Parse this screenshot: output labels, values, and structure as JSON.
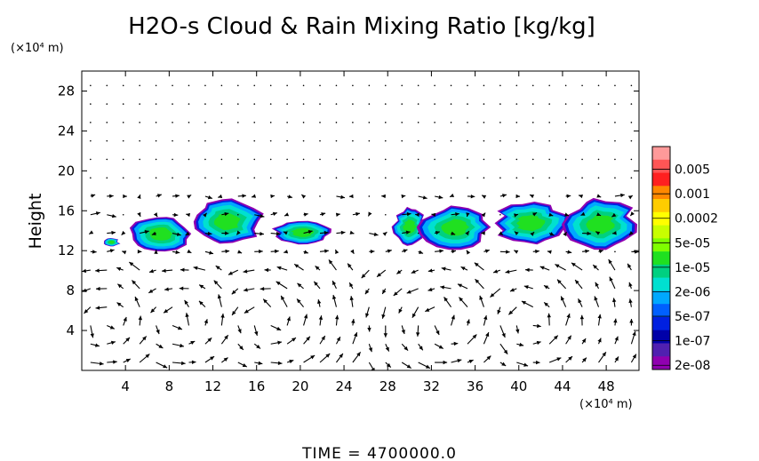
{
  "chart_data": {
    "type": "heatmap",
    "title": "H2O-s Cloud & Rain Mixing Ratio [kg/kg]",
    "ylabel": "Height",
    "xunit": "(×10⁴ m)",
    "yunit": "(×10⁴ m)",
    "xlim": [
      0,
      51
    ],
    "ylim": [
      0,
      30
    ],
    "xticks": [
      4,
      8,
      12,
      16,
      20,
      24,
      28,
      32,
      36,
      40,
      44,
      48
    ],
    "yticks": [
      4,
      8,
      12,
      16,
      20,
      24,
      28
    ],
    "footer": "TIME  =  4700000.0",
    "colorbar": {
      "labels": [
        "0.005",
        "0.001",
        "0.0002",
        "5e-05",
        "1e-05",
        "2e-06",
        "5e-07",
        "1e-07",
        "2e-08"
      ],
      "colors": [
        "#ff9a9a",
        "#ff5555",
        "#ff2020",
        "#ff8800",
        "#ffcc00",
        "#ffff00",
        "#c8ff00",
        "#7fff00",
        "#20e020",
        "#00d080",
        "#00e0d0",
        "#00a8ff",
        "#0060ff",
        "#0020e0",
        "#0000a8",
        "#5020b0",
        "#9000b0"
      ]
    },
    "cloud_clusters": [
      {
        "x": [
          2.0,
          3.5
        ],
        "y": [
          12.5,
          13.2
        ],
        "level": 6
      },
      {
        "x": [
          4.5,
          10.0
        ],
        "y": [
          12.2,
          15.2
        ],
        "level": 7
      },
      {
        "x": [
          10.0,
          16.5
        ],
        "y": [
          13.0,
          16.8
        ],
        "level": 7
      },
      {
        "x": [
          17.5,
          23.0
        ],
        "y": [
          12.8,
          14.8
        ],
        "level": 7
      },
      {
        "x": [
          28.5,
          31.5
        ],
        "y": [
          12.8,
          16.0
        ],
        "level": 6
      },
      {
        "x": [
          31.0,
          37.5
        ],
        "y": [
          12.5,
          16.2
        ],
        "level": 7
      },
      {
        "x": [
          37.5,
          44.5
        ],
        "y": [
          13.0,
          16.5
        ],
        "level": 8
      },
      {
        "x": [
          44.0,
          51.0
        ],
        "y": [
          12.5,
          16.8
        ],
        "level": 8
      }
    ]
  }
}
